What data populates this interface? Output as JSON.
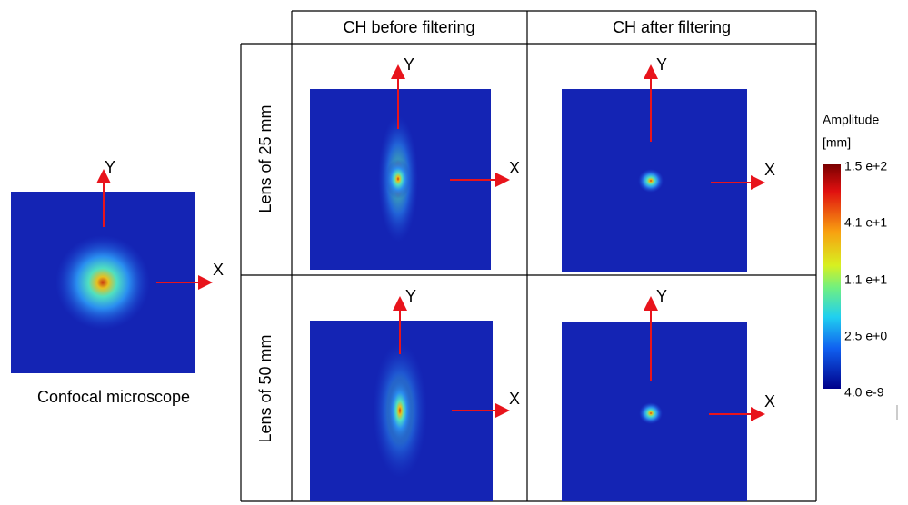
{
  "reference": {
    "caption": "Confocal microscope",
    "x_axis": "X",
    "y_axis": "Y"
  },
  "table": {
    "columns": [
      "CH before filtering",
      "CH after filtering"
    ],
    "rows": [
      {
        "label": "Lens of 25 mm",
        "panels": [
          {
            "x_axis": "X",
            "y_axis": "Y"
          },
          {
            "x_axis": "X",
            "y_axis": "Y"
          }
        ]
      },
      {
        "label": "Lens of 50 mm",
        "panels": [
          {
            "x_axis": "X",
            "y_axis": "Y"
          },
          {
            "x_axis": "X",
            "y_axis": "Y"
          }
        ]
      }
    ]
  },
  "colorbar": {
    "title": [
      "Amplitude",
      "[mm]"
    ],
    "labels": [
      "1.5 e+2",
      "4.1 e+1",
      "1.1 e+1",
      "2.5 e+0",
      "4.0 e-9"
    ]
  }
}
